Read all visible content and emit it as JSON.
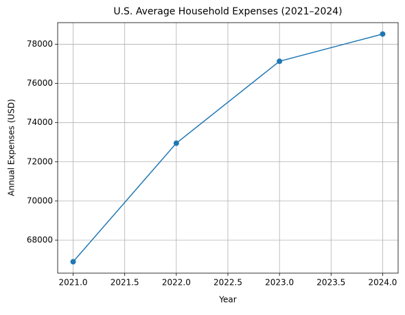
{
  "chart_data": {
    "type": "line",
    "title": "U.S. Average Household Expenses (2021–2024)",
    "x_label": "Year",
    "y_label": "Annual Expenses (USD)",
    "x": [
      2021,
      2022,
      2023,
      2024
    ],
    "series": [
      {
        "name": "Annual Expenses",
        "color": "#1f77b4",
        "values": [
          66900,
          72950,
          77130,
          78520
        ]
      }
    ],
    "xlim": [
      2020.85,
      2024.15
    ],
    "xticks": [
      {
        "value": 2021,
        "label": "2021.0"
      },
      {
        "value": 2021.5,
        "label": "2021.5"
      },
      {
        "value": 2022,
        "label": "2022.0"
      },
      {
        "value": 2022.5,
        "label": "2022.5"
      },
      {
        "value": 2023,
        "label": "2023.0"
      },
      {
        "value": 2023.5,
        "label": "2023.5"
      },
      {
        "value": 2024,
        "label": "2024.0"
      }
    ],
    "ylim": [
      66319,
      79101
    ],
    "yticks": [
      68000,
      70000,
      72000,
      74000,
      76000,
      78000
    ],
    "grid": true,
    "markers": true
  }
}
